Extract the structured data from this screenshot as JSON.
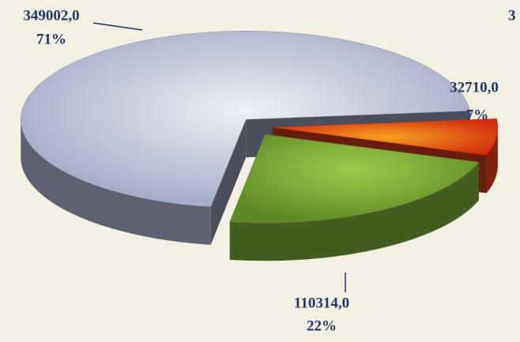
{
  "chart_data": {
    "type": "pie3d",
    "values": [
      349002,
      32710,
      110314
    ],
    "value_labels": [
      "349002,0",
      "32710,0",
      "110314,0"
    ],
    "percents": [
      71,
      7,
      22
    ],
    "percent_labels": [
      "71%",
      "7%",
      "22%"
    ],
    "colors": [
      "#a9b0cb",
      "#e8401a",
      "#7aa83a"
    ],
    "annotation": "3"
  }
}
